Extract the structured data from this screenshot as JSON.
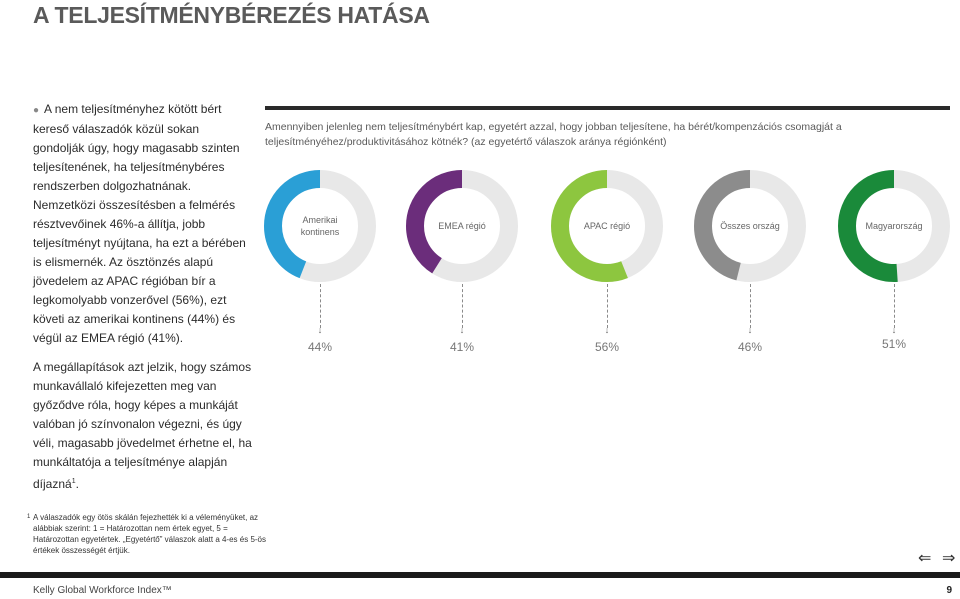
{
  "title": "A TELJESÍTMÉNYBÉREZÉS HATÁSA",
  "left": {
    "para1": "A nem teljesítményhez kötött bért kereső válaszadók közül sokan gondolják úgy, hogy magasabb szinten teljesítenének, ha teljesítménybéres rendszerben dolgozhatnának. Nemzetközi összesítésben a felmérés résztvevőinek 46%-a állítja, jobb teljesítményt nyújtana, ha ezt a bérében is elismernék. Az ösztönzés alapú jövedelem az APAC régióban bír a legkomolyabb vonzerővel (56%), ezt követi az amerikai kontinens (44%) és végül az EMEA régió (41%).",
    "para2": "A megállapítások azt jelzik, hogy számos munkavállaló kifejezetten meg van győződve róla, hogy képes a munkáját valóban jó színvonalon végezni, és úgy véli, magasabb jövedelmet érhetne el, ha munkáltatója a teljesítménye alapján díjazná",
    "para2_sup": "1",
    "para2_end": "."
  },
  "question": "Amennyiben jelenleg nem teljesítménybért kap, egyetért azzal, hogy jobban teljesítene, ha bérét/kompenzációs csomagját a teljesítményéhez/produktivitásához kötnék? (az egyetértő válaszok aránya régiónként)",
  "chart_data": {
    "type": "pie",
    "categories": [
      "Amerikai kontinens",
      "EMEA régió",
      "APAC régió",
      "Összes ország",
      "Magyarország"
    ],
    "values": [
      44,
      41,
      56,
      46,
      51
    ],
    "value_labels": [
      "44%",
      "41%",
      "56%",
      "46%",
      "51%"
    ],
    "colors": [
      "#2a9fd6",
      "#6b2d7b",
      "#8dc63f",
      "#8c8c8c",
      "#1a8a3a"
    ],
    "track_color": "#e8e8e8"
  },
  "footnote": {
    "sup": "1",
    "text": "A válaszadók egy ötös skálán fejezhették ki a véleményüket, az alábbiak szerint: 1 = Határozottan nem értek egyet, 5 = Határozottan egyetértek. „Egyetértő” válaszok alatt a 4-es és 5-ös értékek összességét értjük."
  },
  "nav": {
    "prev": "⇐",
    "next": "⇒"
  },
  "footer": {
    "brand": "Kelly Global Workforce Index™",
    "page": "9"
  }
}
